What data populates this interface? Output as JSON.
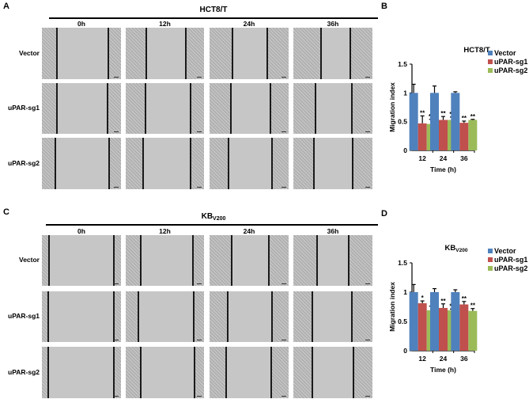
{
  "panels": {
    "A": {
      "label": "A",
      "title": "HCT8/T",
      "times": [
        "0h",
        "12h",
        "24h",
        "36h"
      ],
      "rows": [
        "Vector",
        "uPAR-sg1",
        "uPAR-sg2"
      ]
    },
    "B": {
      "label": "B"
    },
    "C": {
      "label": "C",
      "title_main": "KB",
      "title_sub": "V200",
      "times": [
        "0h",
        "12h",
        "24h",
        "36h"
      ],
      "rows": [
        "Vector",
        "uPAR-sg1",
        "uPAR-sg2"
      ]
    },
    "D": {
      "label": "D"
    }
  },
  "colors": {
    "Vector": "#4F81BD",
    "uPAR-sg1": "#C0504D",
    "uPAR-sg2": "#9BBB59"
  },
  "chart_data": [
    {
      "panel": "B",
      "type": "bar",
      "title": "HCT8/T",
      "xlabel": "Time (h)",
      "ylabel": "Migration index",
      "categories": [
        "12",
        "24",
        "36"
      ],
      "ylim": [
        0,
        1.5
      ],
      "yticks": [
        "0",
        "0.5",
        "1",
        "1.5"
      ],
      "legend_position": "top-right",
      "grid": false,
      "series": [
        {
          "name": "Vector",
          "values": [
            1.0,
            1.0,
            1.0
          ],
          "errors": [
            0.15,
            0.12,
            0.02
          ],
          "sig": [
            "",
            "",
            ""
          ]
        },
        {
          "name": "uPAR-sg1",
          "values": [
            0.47,
            0.53,
            0.48
          ],
          "errors": [
            0.13,
            0.06,
            0.03
          ],
          "sig": [
            "**",
            "**",
            "**"
          ]
        },
        {
          "name": "uPAR-sg2",
          "values": [
            0.46,
            0.53,
            0.53
          ],
          "errors": [
            0.08,
            0.05,
            0.01
          ],
          "sig": [
            "**",
            "**",
            "**"
          ]
        }
      ]
    },
    {
      "panel": "D",
      "type": "bar",
      "title": "KB",
      "title_sub": "V200",
      "xlabel": "Time (h)",
      "ylabel": "Migration index",
      "categories": [
        "12",
        "24",
        "36"
      ],
      "ylim": [
        0,
        1.5
      ],
      "yticks": [
        "0",
        "0.5",
        "1",
        "1.5"
      ],
      "legend_position": "top-right",
      "grid": false,
      "series": [
        {
          "name": "Vector",
          "values": [
            1.0,
            1.0,
            1.0
          ],
          "errors": [
            0.13,
            0.06,
            0.04
          ],
          "sig": [
            "",
            "",
            ""
          ]
        },
        {
          "name": "uPAR-sg1",
          "values": [
            0.81,
            0.73,
            0.79
          ],
          "errors": [
            0.04,
            0.07,
            0.05
          ],
          "sig": [
            "*",
            "**",
            "**"
          ]
        },
        {
          "name": "uPAR-sg2",
          "values": [
            0.69,
            0.69,
            0.68
          ],
          "errors": [
            0.07,
            0.02,
            0.04
          ],
          "sig": [
            "*",
            "**",
            "**"
          ]
        }
      ]
    }
  ]
}
